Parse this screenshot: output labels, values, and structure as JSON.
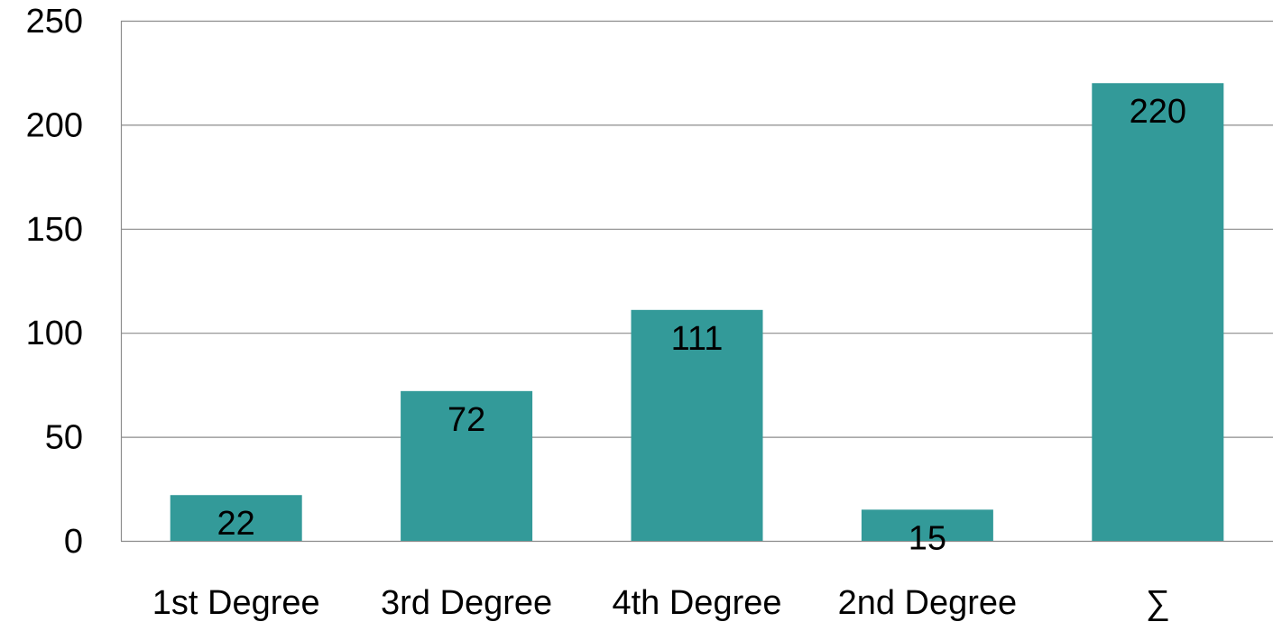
{
  "chart_data": {
    "type": "bar",
    "title": "",
    "xlabel": "",
    "ylabel": "",
    "categories": [
      "1st Degree",
      "3rd Degree",
      "4th Degree",
      "2nd Degree",
      "∑"
    ],
    "values": [
      22,
      72,
      111,
      15,
      220
    ],
    "data_labels": [
      "22",
      "72",
      "111",
      "15",
      "220"
    ],
    "ylim": [
      0,
      250
    ],
    "yticks": [
      0,
      50,
      100,
      150,
      200,
      250
    ],
    "ytick_labels": [
      "0",
      "50",
      "100",
      "150",
      "200",
      "250"
    ],
    "grid": true,
    "legend": "none",
    "colors": {
      "bar": "#339A99",
      "grid": "#8C8C8C",
      "text": "#000000"
    }
  }
}
